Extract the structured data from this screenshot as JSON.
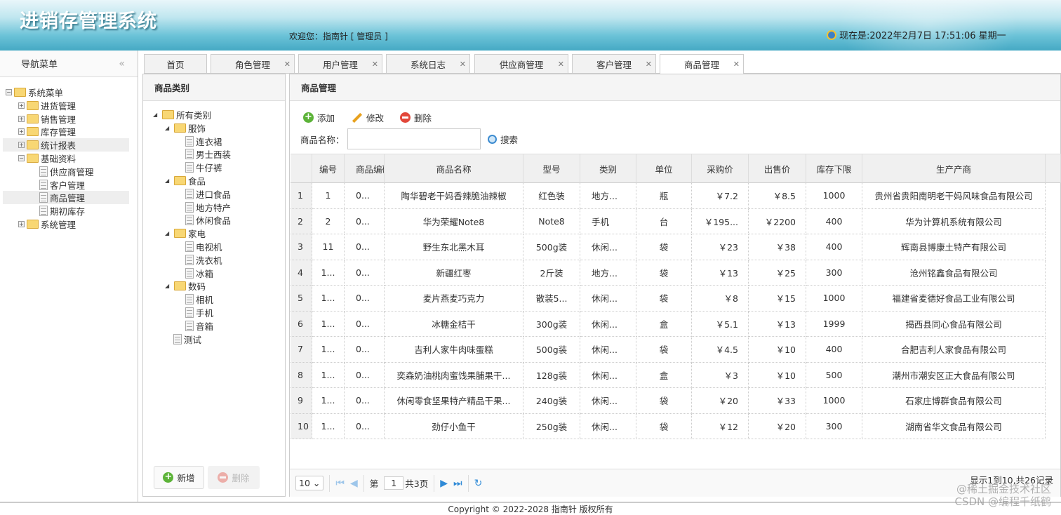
{
  "header": {
    "title": "进销存管理系统",
    "welcome": "欢迎您：指南针 [ 管理员 ]",
    "datetime": "现在是:2022年2月7日 17:51:06 星期一"
  },
  "nav": {
    "title": "导航菜单",
    "collapse": "«",
    "items": [
      {
        "label": "系统菜单",
        "type": "folder",
        "level": 0,
        "expanded": true
      },
      {
        "label": "进货管理",
        "type": "folder",
        "level": 1
      },
      {
        "label": "销售管理",
        "type": "folder",
        "level": 1
      },
      {
        "label": "库存管理",
        "type": "folder",
        "level": 1
      },
      {
        "label": "统计报表",
        "type": "folder",
        "level": 1,
        "hover": true
      },
      {
        "label": "基础资料",
        "type": "folder",
        "level": 1,
        "expanded": true
      },
      {
        "label": "供应商管理",
        "type": "file",
        "level": 2
      },
      {
        "label": "客户管理",
        "type": "file",
        "level": 2
      },
      {
        "label": "商品管理",
        "type": "file",
        "level": 2,
        "selected": true
      },
      {
        "label": "期初库存",
        "type": "file",
        "level": 2
      },
      {
        "label": "系统管理",
        "type": "folder",
        "level": 1
      }
    ]
  },
  "tabs": [
    {
      "label": "首页",
      "closable": false
    },
    {
      "label": "角色管理",
      "closable": true
    },
    {
      "label": "用户管理",
      "closable": true
    },
    {
      "label": "系统日志",
      "closable": true
    },
    {
      "label": "供应商管理",
      "closable": true
    },
    {
      "label": "客户管理",
      "closable": true
    },
    {
      "label": "商品管理",
      "closable": true,
      "selected": true
    }
  ],
  "category": {
    "title": "商品类别",
    "tree": [
      {
        "label": "所有类别",
        "type": "folder",
        "level": 0
      },
      {
        "label": "服饰",
        "type": "folder",
        "level": 1
      },
      {
        "label": "连衣裙",
        "type": "file",
        "level": 2
      },
      {
        "label": "男士西装",
        "type": "file",
        "level": 2
      },
      {
        "label": "牛仔裤",
        "type": "file",
        "level": 2
      },
      {
        "label": "食品",
        "type": "folder",
        "level": 1
      },
      {
        "label": "进口食品",
        "type": "file",
        "level": 2
      },
      {
        "label": "地方特产",
        "type": "file",
        "level": 2
      },
      {
        "label": "休闲食品",
        "type": "file",
        "level": 2
      },
      {
        "label": "家电",
        "type": "folder",
        "level": 1
      },
      {
        "label": "电视机",
        "type": "file",
        "level": 2
      },
      {
        "label": "洗衣机",
        "type": "file",
        "level": 2
      },
      {
        "label": "冰箱",
        "type": "file",
        "level": 2
      },
      {
        "label": "数码",
        "type": "folder",
        "level": 1
      },
      {
        "label": "相机",
        "type": "file",
        "level": 2
      },
      {
        "label": "手机",
        "type": "file",
        "level": 2
      },
      {
        "label": "音箱",
        "type": "file",
        "level": 2
      },
      {
        "label": "测试",
        "type": "file",
        "level": 1
      }
    ],
    "add_label": "新增",
    "delete_label": "删除"
  },
  "main": {
    "title": "商品管理",
    "add_label": "添加",
    "edit_label": "修改",
    "delete_label": "删除",
    "search_label": "商品名称：",
    "search_value": "",
    "search_button": "搜索",
    "columns": [
      "编号",
      "商品编码",
      "商品名称",
      "型号",
      "类别",
      "单位",
      "采购价",
      "出售价",
      "库存下限",
      "生产产商"
    ],
    "rows": [
      [
        "1",
        "1",
        "0...",
        "陶华碧老干妈香辣脆油辣椒",
        "红色装",
        "地方...",
        "瓶",
        "￥7.2",
        "￥8.5",
        "1000",
        "贵州省贵阳南明老干妈风味食品有限公司"
      ],
      [
        "2",
        "2",
        "0...",
        "华为荣耀Note8",
        "Note8",
        "手机",
        "台",
        "￥195...",
        "￥2200",
        "400",
        "华为计算机系统有限公司"
      ],
      [
        "3",
        "11",
        "0...",
        "野生东北黑木耳",
        "500g装",
        "休闲...",
        "袋",
        "￥23",
        "￥38",
        "400",
        "辉南县博康土特产有限公司"
      ],
      [
        "4",
        "1...",
        "0...",
        "新疆红枣",
        "2斤装",
        "地方...",
        "袋",
        "￥13",
        "￥25",
        "300",
        "沧州铭鑫食品有限公司"
      ],
      [
        "5",
        "1...",
        "0...",
        "麦片燕麦巧克力",
        "散装5...",
        "休闲...",
        "袋",
        "￥8",
        "￥15",
        "1000",
        "福建省麦德好食品工业有限公司"
      ],
      [
        "6",
        "1...",
        "0...",
        "冰糖金桔干",
        "300g装",
        "休闲...",
        "盒",
        "￥5.1",
        "￥13",
        "1999",
        "揭西县同心食品有限公司"
      ],
      [
        "7",
        "1...",
        "0...",
        "吉利人家牛肉味蛋糕",
        "500g装",
        "休闲...",
        "袋",
        "￥4.5",
        "￥10",
        "400",
        "合肥吉利人家食品有限公司"
      ],
      [
        "8",
        "1...",
        "0...",
        "奕森奶油桃肉蜜饯果脯果干...",
        "128g装",
        "休闲...",
        "盒",
        "￥3",
        "￥10",
        "500",
        "潮州市潮安区正大食品有限公司"
      ],
      [
        "9",
        "1...",
        "0...",
        "休闲零食坚果特产精品干果...",
        "240g装",
        "休闲...",
        "袋",
        "￥20",
        "￥33",
        "1000",
        "石家庄博群食品有限公司"
      ],
      [
        "10",
        "1...",
        "0...",
        "劲仔小鱼干",
        "250g装",
        "休闲...",
        "袋",
        "￥12",
        "￥20",
        "300",
        "湖南省华文食品有限公司"
      ]
    ],
    "pager": {
      "page_size": "10",
      "page_prefix": "第",
      "page": "1",
      "page_suffix": "共3页",
      "summary": "显示1到10,共26记录"
    }
  },
  "footer": "Copyright © 2022-2028 指南针 版权所有",
  "watermark": [
    "@稀土掘金技术社区",
    "CSDN @编程千纸鹤"
  ]
}
